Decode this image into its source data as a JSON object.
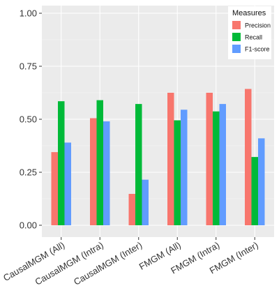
{
  "chart_data": {
    "type": "bar",
    "title": "",
    "xlabel": "",
    "ylabel": "",
    "ylim": [
      0,
      1.0
    ],
    "yticks": [
      "0.00",
      "0.25",
      "0.50",
      "0.75",
      "1.00"
    ],
    "ytick_values": [
      0,
      0.25,
      0.5,
      0.75,
      1.0
    ],
    "categories": [
      "CausalMGM (All)",
      "CausalMGM (Intra)",
      "CausalMGM (Inter)",
      "FMGM (All)",
      "FMGM (Intra)",
      "FMGM (Inter)"
    ],
    "legend": {
      "title": "Measures",
      "position": "top-right"
    },
    "grid": true,
    "series": [
      {
        "name": "Precision",
        "color": "#F8766D",
        "values": [
          0.345,
          0.505,
          0.148,
          0.625,
          0.625,
          0.643
        ]
      },
      {
        "name": "Recall",
        "color": "#00BA38",
        "values": [
          0.585,
          0.59,
          0.572,
          0.495,
          0.537,
          0.322
        ]
      },
      {
        "name": "F1-score",
        "color": "#619CFF",
        "values": [
          0.39,
          0.49,
          0.215,
          0.545,
          0.572,
          0.41
        ]
      }
    ]
  }
}
